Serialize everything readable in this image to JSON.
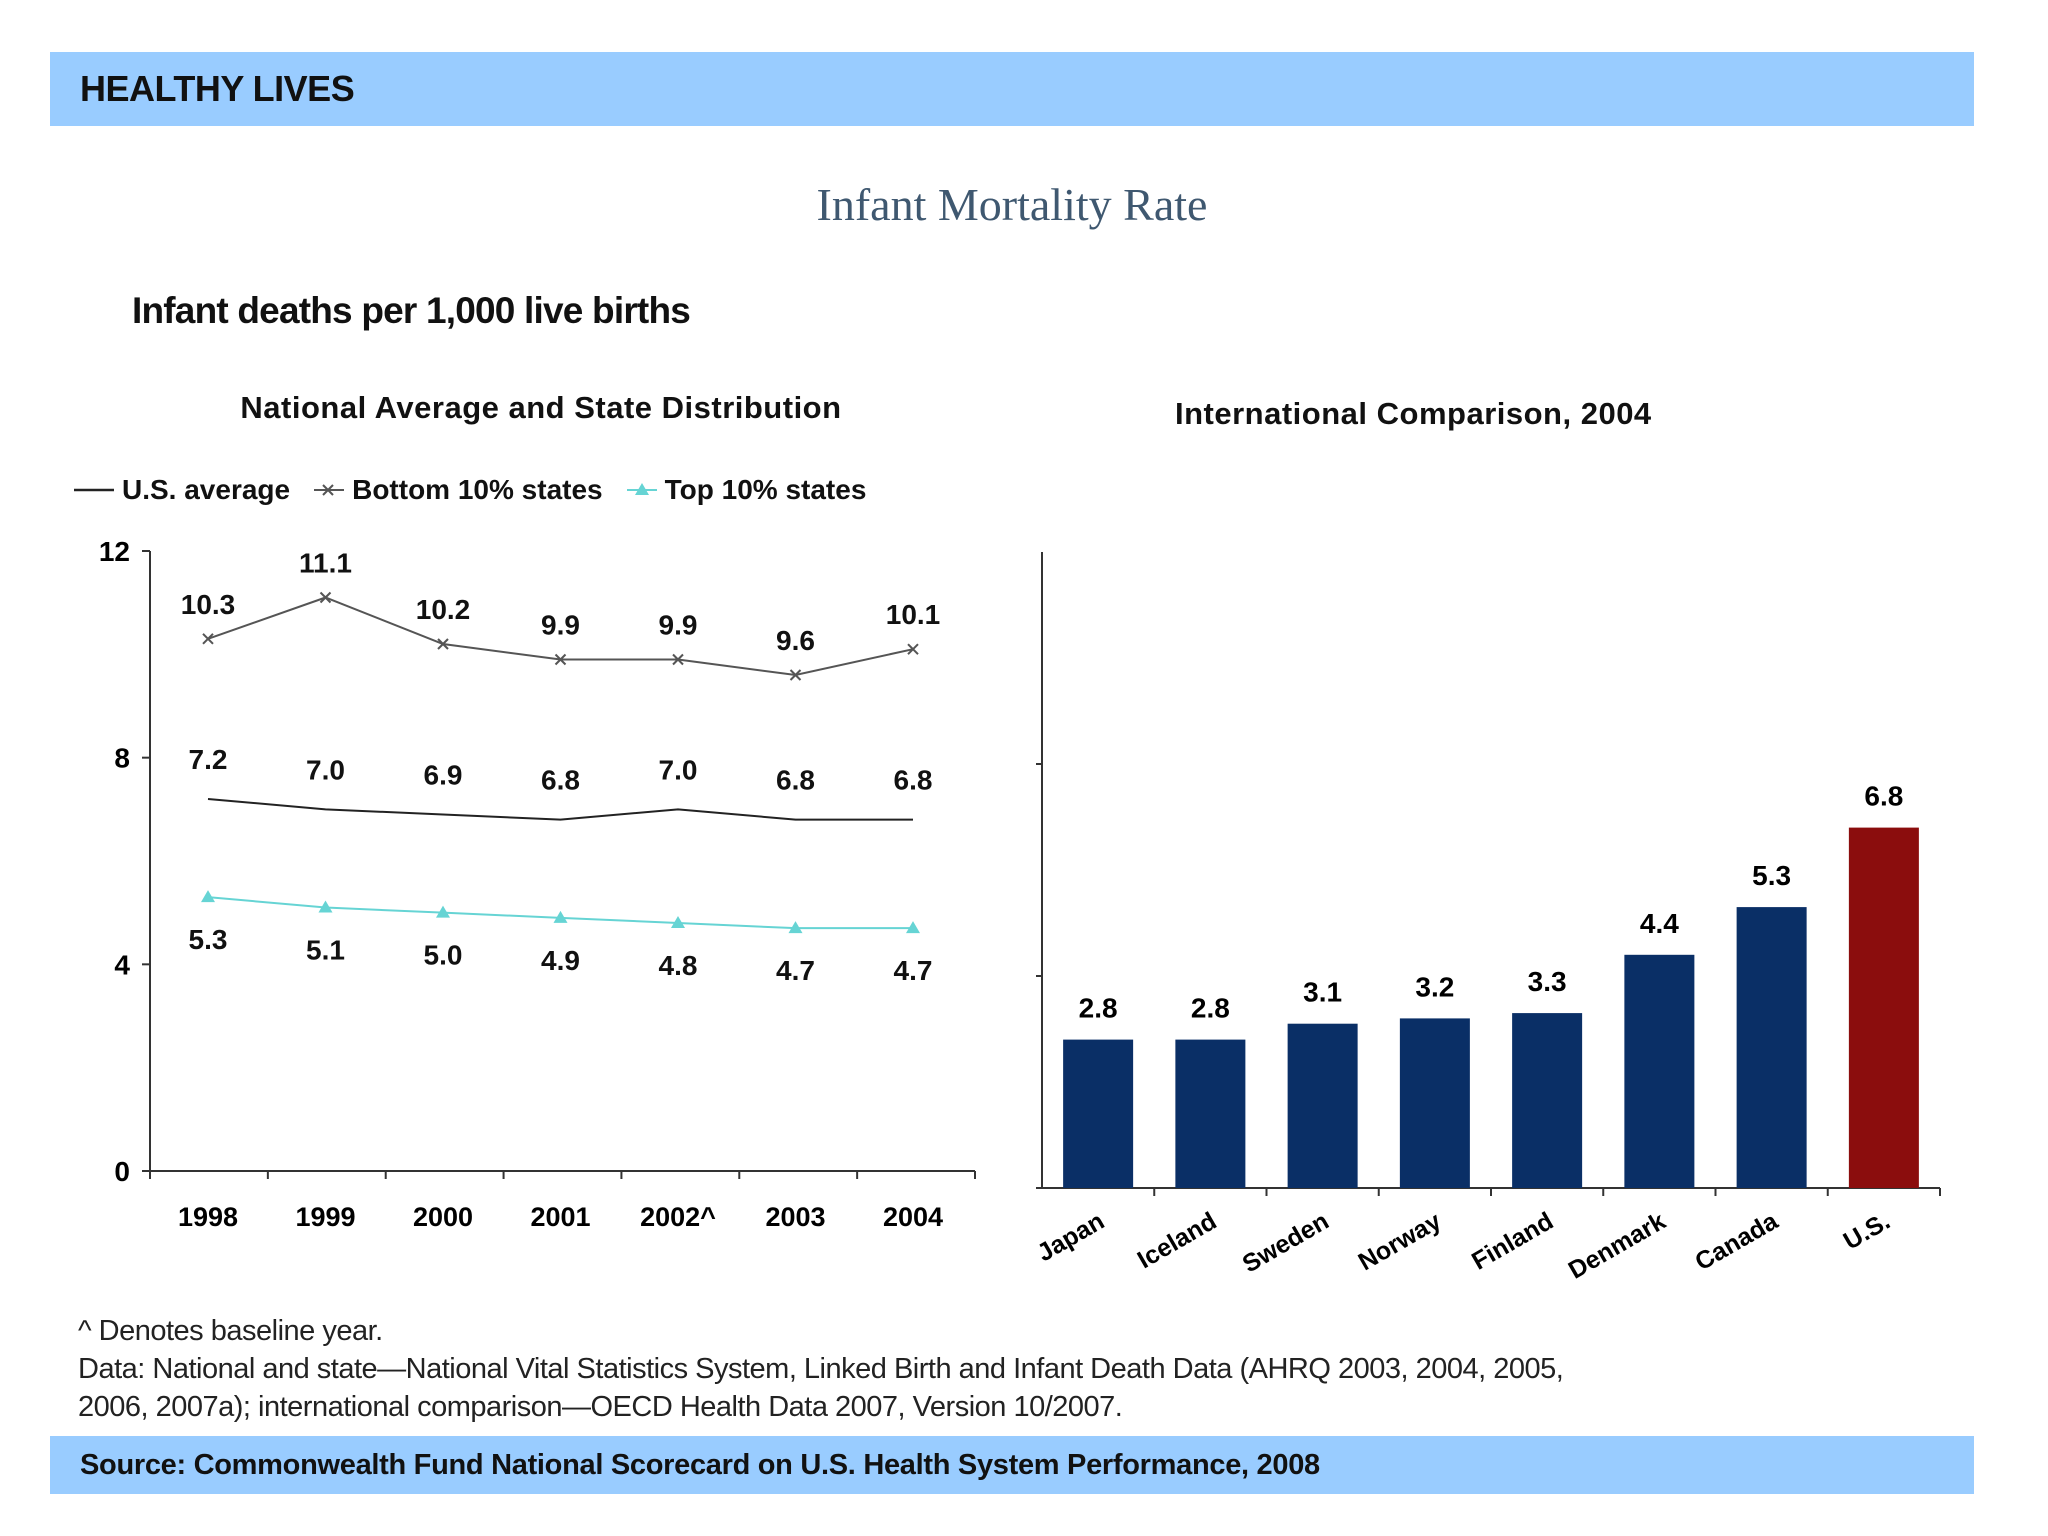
{
  "header": {
    "title": "HEALTHY LIVES"
  },
  "main_title": "Infant Mortality Rate",
  "subtitle": "Infant deaths per 1,000 live births",
  "chart_data": [
    {
      "type": "line",
      "title": "National Average and State Distribution",
      "categories": [
        "1998",
        "1999",
        "2000",
        "2001",
        "2002^",
        "2003",
        "2004"
      ],
      "ylim": [
        0,
        12
      ],
      "yticks": [
        0,
        4,
        8,
        12
      ],
      "legend_position": "top",
      "series": [
        {
          "name": "U.S. average",
          "color": "#222222",
          "marker": "none",
          "values": [
            7.2,
            7.0,
            6.9,
            6.8,
            7.0,
            6.8,
            6.8
          ],
          "labels": [
            "7.2",
            "7.0",
            "6.9",
            "6.8",
            "7.0",
            "6.8",
            "6.8"
          ]
        },
        {
          "name": "Bottom 10% states",
          "color": "#555555",
          "marker": "x",
          "values": [
            10.3,
            11.1,
            10.2,
            9.9,
            9.9,
            9.6,
            10.1
          ],
          "labels": [
            "10.3",
            "11.1",
            "10.2",
            "9.9",
            "9.9",
            "9.6",
            "10.1"
          ]
        },
        {
          "name": "Top 10% states",
          "color": "#66d4d4",
          "marker": "triangle",
          "values": [
            5.3,
            5.1,
            5.0,
            4.9,
            4.8,
            4.7,
            4.7
          ],
          "labels": [
            "5.3",
            "5.1",
            "5.0",
            "4.9",
            "4.8",
            "4.7",
            "4.7"
          ]
        }
      ]
    },
    {
      "type": "bar",
      "title": "International Comparison, 2004",
      "categories": [
        "Japan",
        "Iceland",
        "Sweden",
        "Norway",
        "Finland",
        "Denmark",
        "Canada",
        "U.S."
      ],
      "values": [
        2.8,
        2.8,
        3.1,
        3.2,
        3.3,
        4.4,
        5.3,
        6.8
      ],
      "labels": [
        "2.8",
        "2.8",
        "3.1",
        "3.2",
        "3.3",
        "4.4",
        "5.3",
        "6.8"
      ],
      "ylim": [
        0,
        12
      ],
      "bar_color": "#0a2f66",
      "highlight_color": "#8b0d0d",
      "highlight_category": "U.S."
    }
  ],
  "footnote": {
    "line1": "^ Denotes baseline year.",
    "line2": "Data: National and state—National Vital Statistics System, Linked Birth and Infant Death Data (AHRQ 2003, 2004, 2005,",
    "line3": "2006, 2007a); international comparison—OECD Health Data 2007, Version 10/2007."
  },
  "source": {
    "text": "Source: Commonwealth Fund National Scorecard on U.S. Health System Performance, 2008"
  }
}
